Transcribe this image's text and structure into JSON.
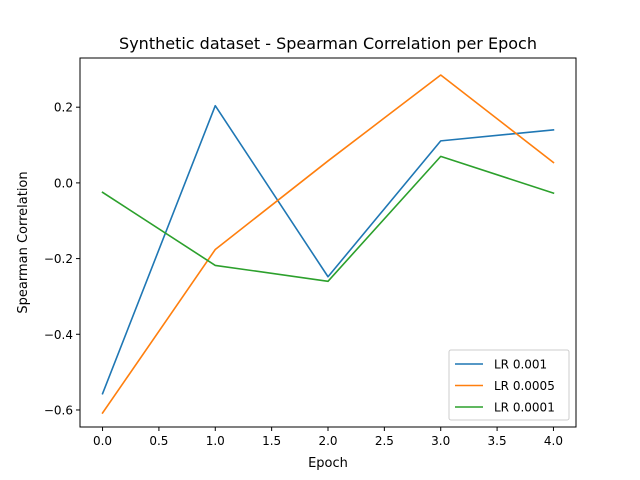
{
  "chart_data": {
    "type": "line",
    "title": "Synthetic dataset - Spearman Correlation per Epoch",
    "xlabel": "Epoch",
    "ylabel": "Spearman Correlation",
    "x": [
      0,
      1,
      2,
      3,
      4
    ],
    "xlim": [
      -0.2,
      4.2
    ],
    "ylim": [
      -0.645,
      0.33
    ],
    "xticks": [
      0.0,
      0.5,
      1.0,
      1.5,
      2.0,
      2.5,
      3.0,
      3.5,
      4.0
    ],
    "xtick_labels": [
      "0.0",
      "0.5",
      "1.0",
      "1.5",
      "2.0",
      "2.5",
      "3.0",
      "3.5",
      "4.0"
    ],
    "yticks": [
      -0.6,
      -0.4,
      -0.2,
      0.0,
      0.2
    ],
    "ytick_labels": [
      "−0.6",
      "−0.4",
      "−0.2",
      "0.0",
      "0.2"
    ],
    "grid": false,
    "legend_position": "lower-right",
    "series": [
      {
        "name": "LR 0.001",
        "color": "#1f77b4",
        "values": [
          -0.557,
          0.204,
          -0.248,
          0.111,
          0.14
        ]
      },
      {
        "name": "LR 0.0005",
        "color": "#ff7f0e",
        "values": [
          -0.608,
          -0.176,
          0.058,
          0.285,
          0.054
        ]
      },
      {
        "name": "LR 0.0001",
        "color": "#2ca02c",
        "values": [
          -0.025,
          -0.218,
          -0.26,
          0.07,
          -0.027
        ]
      }
    ]
  }
}
